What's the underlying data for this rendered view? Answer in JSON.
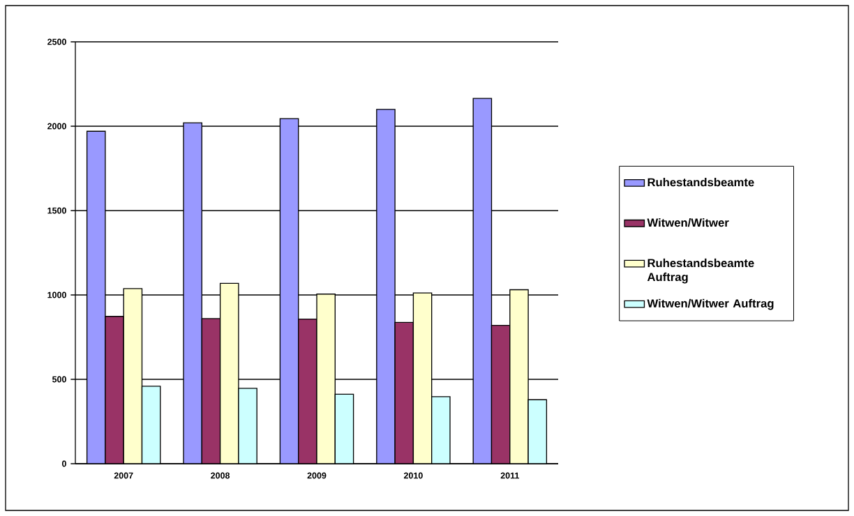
{
  "chart_data": {
    "type": "bar",
    "categories": [
      "2007",
      "2008",
      "2009",
      "2010",
      "2011"
    ],
    "series": [
      {
        "name": "Ruhestandsbeamte",
        "color": "#9999ff",
        "values": [
          1970,
          2020,
          2045,
          2100,
          2165
        ]
      },
      {
        "name": "Witwen/Witwer",
        "color": "#993366",
        "values": [
          873,
          860,
          857,
          837,
          820
        ]
      },
      {
        "name": "Ruhestandsbeamte Auftrag",
        "color": "#ffffcc",
        "values": [
          1038,
          1069,
          1005,
          1012,
          1031
        ]
      },
      {
        "name": "Witwen/Witwer Auftrag",
        "color": "#ccffff",
        "values": [
          459,
          447,
          412,
          397,
          379
        ]
      }
    ],
    "ylim": [
      0,
      2500
    ],
    "yticks": [
      0,
      500,
      1000,
      1500,
      2000,
      2500
    ],
    "grid": "y",
    "legend": "right"
  }
}
